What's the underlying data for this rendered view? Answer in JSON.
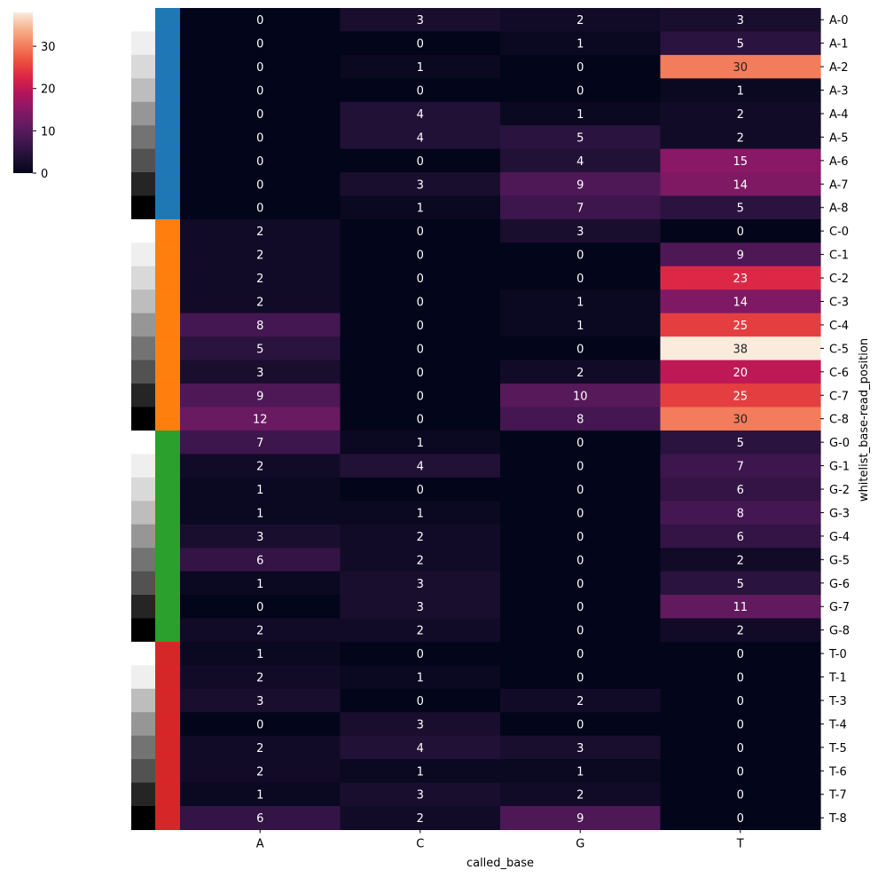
{
  "chart_data": {
    "type": "heatmap",
    "xlabel": "called_base",
    "ylabel": "whitelist_base-read_position",
    "columns": [
      "A",
      "C",
      "G",
      "T"
    ],
    "rows": [
      "A-0",
      "A-1",
      "A-2",
      "A-3",
      "A-4",
      "A-5",
      "A-6",
      "A-7",
      "A-8",
      "C-0",
      "C-1",
      "C-2",
      "C-3",
      "C-4",
      "C-5",
      "C-6",
      "C-7",
      "C-8",
      "G-0",
      "G-1",
      "G-2",
      "G-3",
      "G-4",
      "G-5",
      "G-6",
      "G-7",
      "G-8",
      "T-0",
      "T-1",
      "T-3",
      "T-4",
      "T-5",
      "T-6",
      "T-7",
      "T-8"
    ],
    "values": [
      [
        0,
        3,
        2,
        3
      ],
      [
        0,
        0,
        1,
        5
      ],
      [
        0,
        1,
        0,
        30
      ],
      [
        0,
        0,
        0,
        1
      ],
      [
        0,
        4,
        1,
        2
      ],
      [
        0,
        4,
        5,
        2
      ],
      [
        0,
        0,
        4,
        15
      ],
      [
        0,
        3,
        9,
        14
      ],
      [
        0,
        1,
        7,
        5
      ],
      [
        2,
        0,
        3,
        0
      ],
      [
        2,
        0,
        0,
        9
      ],
      [
        2,
        0,
        0,
        23
      ],
      [
        2,
        0,
        1,
        14
      ],
      [
        8,
        0,
        1,
        25
      ],
      [
        5,
        0,
        0,
        38
      ],
      [
        3,
        0,
        2,
        20
      ],
      [
        9,
        0,
        10,
        25
      ],
      [
        12,
        0,
        8,
        30
      ],
      [
        7,
        1,
        0,
        5
      ],
      [
        2,
        4,
        0,
        7
      ],
      [
        1,
        0,
        0,
        6
      ],
      [
        1,
        1,
        0,
        8
      ],
      [
        3,
        2,
        0,
        6
      ],
      [
        6,
        2,
        0,
        2
      ],
      [
        1,
        3,
        0,
        5
      ],
      [
        0,
        3,
        0,
        11
      ],
      [
        2,
        2,
        0,
        2
      ],
      [
        1,
        0,
        0,
        0
      ],
      [
        2,
        1,
        0,
        0
      ],
      [
        3,
        0,
        2,
        0
      ],
      [
        0,
        3,
        0,
        0
      ],
      [
        2,
        4,
        3,
        0
      ],
      [
        2,
        1,
        1,
        0
      ],
      [
        1,
        3,
        2,
        0
      ],
      [
        6,
        2,
        9,
        0
      ]
    ],
    "vmin": 0,
    "vmax": 38,
    "colormap": "rocket",
    "colorbar_ticks": [
      0,
      10,
      20,
      30
    ],
    "row_color_groups": [
      {
        "base": "A",
        "color": "#1f77b4"
      },
      {
        "base": "C",
        "color": "#ff7f0e"
      },
      {
        "base": "G",
        "color": "#2ca02c"
      },
      {
        "base": "T",
        "color": "#d62728"
      }
    ],
    "position_colors": [
      "#ffffff",
      "#efefef",
      "#d9d9d9",
      "#bdbdbd",
      "#969696",
      "#737373",
      "#525252",
      "#252525",
      "#000000"
    ]
  }
}
